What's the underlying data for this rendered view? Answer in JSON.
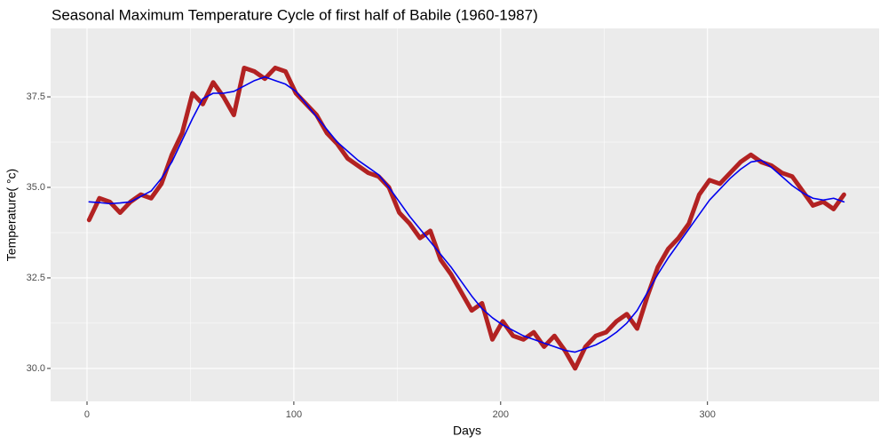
{
  "chart_data": {
    "type": "line",
    "title": "Seasonal Maximum Temperature Cycle of first half of Babile (1960-1987)",
    "x_label": "Days",
    "y_label": "Temperature( °c)",
    "x": [
      1,
      6,
      11,
      16,
      21,
      26,
      31,
      36,
      41,
      46,
      51,
      56,
      61,
      66,
      71,
      76,
      81,
      86,
      91,
      96,
      101,
      106,
      111,
      116,
      121,
      126,
      131,
      136,
      141,
      146,
      151,
      156,
      161,
      166,
      171,
      176,
      181,
      186,
      191,
      196,
      201,
      206,
      211,
      216,
      221,
      226,
      231,
      236,
      241,
      246,
      251,
      256,
      261,
      266,
      271,
      276,
      281,
      286,
      291,
      296,
      301,
      306,
      311,
      316,
      321,
      326,
      331,
      336,
      341,
      346,
      351,
      356,
      361,
      366
    ],
    "series": [
      {
        "color": "#b22222",
        "values": [
          34.1,
          34.7,
          34.6,
          34.3,
          34.6,
          34.8,
          34.7,
          35.1,
          35.9,
          36.5,
          37.6,
          37.3,
          37.9,
          37.5,
          37.0,
          38.3,
          38.2,
          38.0,
          38.3,
          38.2,
          37.6,
          37.3,
          37.0,
          36.5,
          36.2,
          35.8,
          35.6,
          35.4,
          35.3,
          35.0,
          34.3,
          34.0,
          33.6,
          33.8,
          33.0,
          32.6,
          32.1,
          31.6,
          31.8,
          30.8,
          31.3,
          30.9,
          30.8,
          31.0,
          30.6,
          30.9,
          30.5,
          30.0,
          30.6,
          30.9,
          31.0,
          31.3,
          31.5,
          31.1,
          32.0,
          32.8,
          33.3,
          33.6,
          34.0,
          34.8,
          35.2,
          35.1,
          35.4,
          35.7,
          35.9,
          35.7,
          35.6,
          35.4,
          35.3,
          34.9,
          34.5,
          34.6,
          34.4,
          34.8
        ]
      },
      {
        "color": "#0000ee",
        "values": [
          34.6,
          34.58,
          34.55,
          34.57,
          34.6,
          34.75,
          34.9,
          35.25,
          35.7,
          36.3,
          36.9,
          37.45,
          37.6,
          37.6,
          37.65,
          37.8,
          37.95,
          38.05,
          37.95,
          37.85,
          37.65,
          37.3,
          36.95,
          36.6,
          36.25,
          36.0,
          35.75,
          35.55,
          35.35,
          35.0,
          34.6,
          34.2,
          33.85,
          33.5,
          33.15,
          32.8,
          32.4,
          32.0,
          31.65,
          31.4,
          31.2,
          31.05,
          30.9,
          30.8,
          30.7,
          30.6,
          30.5,
          30.45,
          30.55,
          30.65,
          30.8,
          31.0,
          31.25,
          31.6,
          32.1,
          32.6,
          33.05,
          33.45,
          33.85,
          34.25,
          34.65,
          34.95,
          35.25,
          35.5,
          35.7,
          35.75,
          35.55,
          35.3,
          35.05,
          34.85,
          34.7,
          34.65,
          34.7,
          34.6
        ]
      }
    ],
    "xlim": [
      -17.6,
      383
    ],
    "xticks": [
      0,
      100,
      200,
      300
    ],
    "ylim": [
      29.09,
      39.39
    ],
    "yticks": [
      {
        "value": 30,
        "label": "30.0"
      },
      32.5,
      {
        "value": 35,
        "label": "35.0"
      },
      37.5
    ],
    "grid": true,
    "panel_color": "#ebebeb"
  }
}
